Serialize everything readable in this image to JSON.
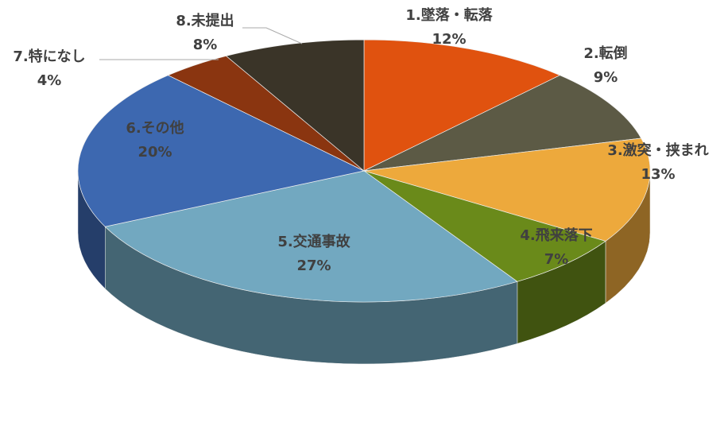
{
  "chart_data": {
    "type": "pie3d",
    "categories": [
      "1.墜落・転落",
      "2.転倒",
      "3.激突・挟まれ",
      "4.飛来落下",
      "5.交通事故",
      "6.その他",
      "7.特になし",
      "8.未提出"
    ],
    "values": [
      12,
      9,
      13,
      7,
      27,
      20,
      4,
      8
    ],
    "value_labels": [
      "12%",
      "9%",
      "13%",
      "7%",
      "27%",
      "20%",
      "4%",
      "8%"
    ],
    "colors": [
      "#e0520f",
      "#5c5a45",
      "#eda93c",
      "#6a8a1a",
      "#72a8c0",
      "#3d68b0",
      "#8a3510",
      "#3a3428"
    ]
  }
}
